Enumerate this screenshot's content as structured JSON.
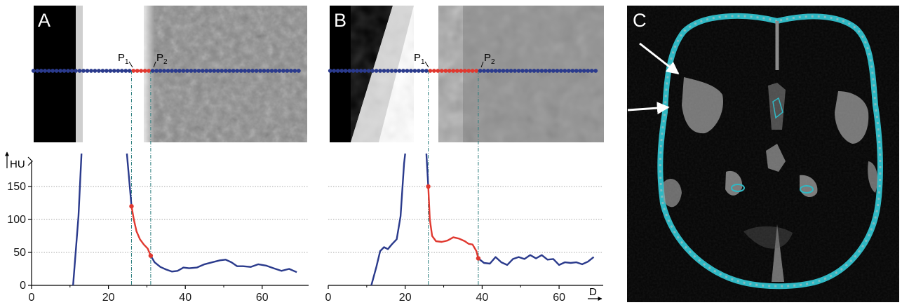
{
  "panels": {
    "a_letter": "A",
    "b_letter": "B",
    "c_letter": "C"
  },
  "annotations": {
    "p1": "P",
    "p1_sub": "1",
    "p2": "P",
    "p2_sub": "2",
    "y_axis_label": "HU",
    "x_axis_label": "D"
  },
  "colors": {
    "profile_blue": "#2a3a8c",
    "segment_red": "#e0382f",
    "guide_teal": "#2a7d7d",
    "bone_cyan": "#2ab8c4"
  },
  "chart_data": [
    {
      "type": "line",
      "panel": "A",
      "title": "",
      "xlabel": "D",
      "ylabel": "HU",
      "xlim": [
        0,
        70
      ],
      "ylim": [
        0,
        175
      ],
      "xticks": [
        0,
        20,
        40,
        60
      ],
      "yticks": [
        0,
        50,
        100,
        150
      ],
      "grid": "horizontal dotted at 50, 100, 150",
      "markers": {
        "P1": 26,
        "P2": 31
      },
      "series": [
        {
          "segment": "blue",
          "color": "#2a3a8c",
          "x": [
            10.8,
            12.2,
            13.0
          ],
          "y": [
            0,
            105,
            200
          ]
        },
        {
          "segment": "blue",
          "color": "#2a3a8c",
          "x": [
            24.8,
            26.0
          ],
          "y": [
            200,
            120
          ]
        },
        {
          "segment": "red",
          "color": "#e0382f",
          "x": [
            26,
            26.6,
            27.3,
            28.2,
            29.2,
            30.2,
            31
          ],
          "y": [
            120,
            100,
            82,
            70,
            62,
            56,
            45
          ]
        },
        {
          "segment": "blue",
          "color": "#2a3a8c",
          "x": [
            31,
            32,
            33.5,
            35,
            36.5,
            38,
            39.5,
            41,
            43,
            45,
            47,
            49,
            50.5,
            52,
            53.5,
            55,
            57,
            59,
            61,
            63,
            65,
            67,
            69
          ],
          "y": [
            45,
            35,
            28,
            24,
            21,
            22,
            27,
            26,
            27,
            32,
            35,
            38,
            39,
            35,
            29,
            29,
            28,
            32,
            30,
            26,
            22,
            25,
            20
          ]
        }
      ]
    },
    {
      "type": "line",
      "panel": "B",
      "title": "",
      "xlabel": "D",
      "ylabel": "HU",
      "xlim": [
        0,
        70
      ],
      "ylim": [
        0,
        175
      ],
      "xticks": [
        0,
        20,
        40,
        60
      ],
      "yticks": [
        0,
        50,
        100,
        150
      ],
      "grid": "horizontal dotted at 50, 100, 150",
      "markers": {
        "P1": 26,
        "P2": 39
      },
      "series": [
        {
          "segment": "blue",
          "color": "#2a3a8c",
          "x": [
            11.2,
            12.5,
            13.5,
            14.5,
            15.5,
            16.5,
            17.8,
            18.8,
            19.3,
            19.7,
            20.0
          ],
          "y": [
            0,
            28,
            52,
            58,
            55,
            62,
            70,
            105,
            150,
            185,
            200
          ]
        },
        {
          "segment": "blue",
          "color": "#2a3a8c",
          "x": [
            25.5,
            26.0
          ],
          "y": [
            200,
            150
          ]
        },
        {
          "segment": "red",
          "color": "#e0382f",
          "x": [
            26,
            26.4,
            27,
            28,
            29.5,
            31,
            32.5,
            34,
            35.5,
            36.5,
            37.5,
            38.5,
            39
          ],
          "y": [
            150,
            100,
            75,
            67,
            66,
            68,
            73,
            71,
            67,
            63,
            62,
            52,
            41
          ]
        },
        {
          "segment": "blue",
          "color": "#2a3a8c",
          "x": [
            39,
            40.5,
            42,
            43.5,
            45,
            46.5,
            48,
            49.5,
            51,
            52.5,
            54,
            55.5,
            57,
            58.5,
            60,
            61.5,
            63,
            64.5,
            66,
            67.5,
            69
          ],
          "y": [
            41,
            34,
            33,
            43,
            35,
            31,
            40,
            43,
            40,
            46,
            41,
            46,
            39,
            40,
            31,
            35,
            34,
            35,
            32,
            36,
            43
          ]
        }
      ]
    }
  ]
}
